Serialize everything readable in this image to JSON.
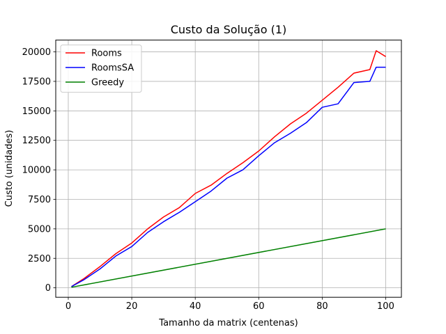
{
  "chart_data": {
    "type": "line",
    "title": "Custo da Solução (1)",
    "xlabel": "Tamanho da matrix (centenas)",
    "ylabel": "Custo (unidades)",
    "xlim": [
      -3.95,
      104.95
    ],
    "ylim": [
      -800,
      21000
    ],
    "xticks": [
      0,
      20,
      40,
      60,
      80,
      100
    ],
    "yticks": [
      0,
      2500,
      5000,
      7500,
      10000,
      12500,
      15000,
      17500,
      20000
    ],
    "grid": true,
    "legend_position": "top-left",
    "series": [
      {
        "name": "Rooms",
        "color": "#ff0000",
        "x": [
          1,
          5,
          10,
          15,
          20,
          25,
          30,
          35,
          40,
          45,
          50,
          55,
          60,
          65,
          70,
          75,
          80,
          85,
          90,
          95,
          97,
          100
        ],
        "y": [
          100,
          800,
          1800,
          2900,
          3800,
          5000,
          6000,
          6800,
          8000,
          8700,
          9700,
          10600,
          11600,
          12800,
          13900,
          14800,
          15900,
          17000,
          18200,
          18500,
          20100,
          19600
        ]
      },
      {
        "name": "RoomsSA",
        "color": "#0000ff",
        "x": [
          1,
          5,
          10,
          15,
          20,
          25,
          30,
          35,
          40,
          45,
          50,
          55,
          60,
          65,
          70,
          75,
          80,
          85,
          90,
          95,
          97,
          100
        ],
        "y": [
          100,
          700,
          1600,
          2700,
          3500,
          4700,
          5600,
          6400,
          7300,
          8200,
          9300,
          10000,
          11200,
          12300,
          13100,
          14000,
          15300,
          15600,
          17400,
          17500,
          18700,
          18700
        ]
      },
      {
        "name": "Greedy",
        "color": "#008000",
        "x": [
          1,
          100
        ],
        "y": [
          50,
          5000
        ]
      }
    ]
  }
}
